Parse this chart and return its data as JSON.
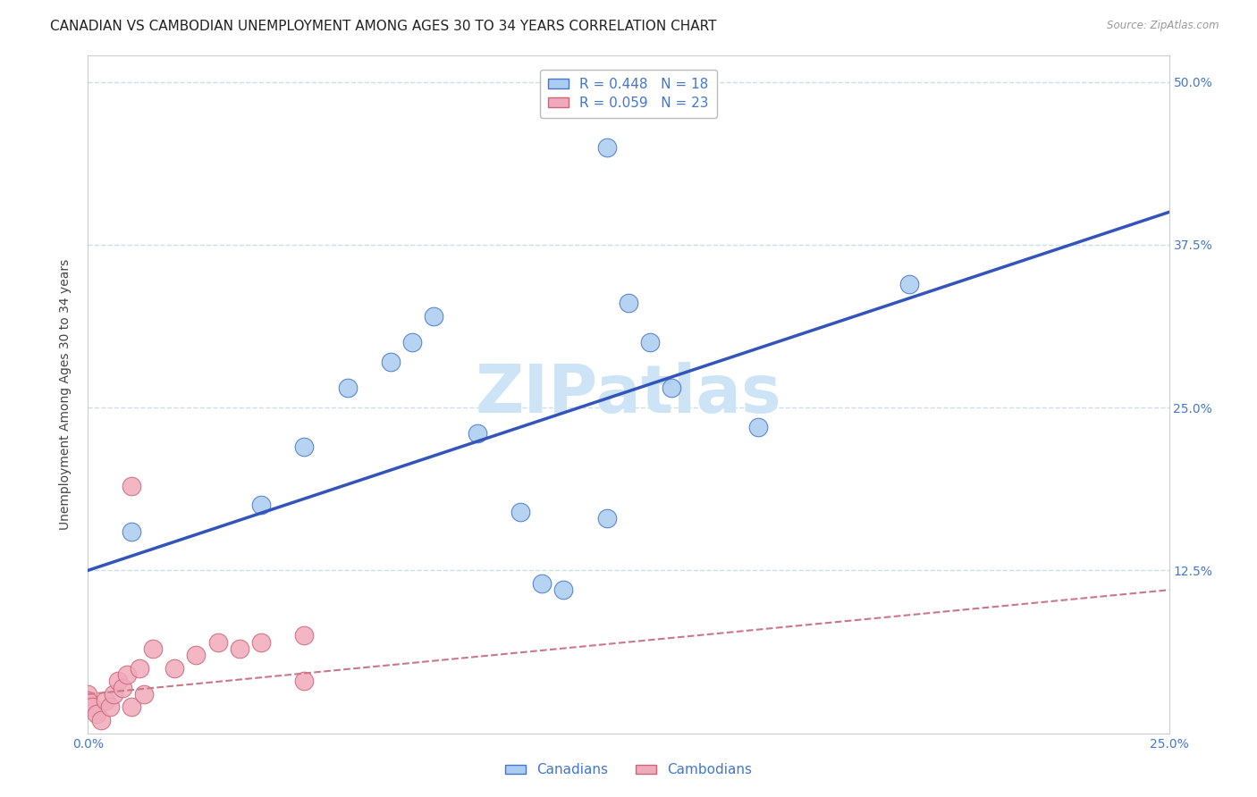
{
  "title": "CANADIAN VS CAMBODIAN UNEMPLOYMENT AMONG AGES 30 TO 34 YEARS CORRELATION CHART",
  "source": "Source: ZipAtlas.com",
  "ylabel": "Unemployment Among Ages 30 to 34 years",
  "xlim": [
    0.0,
    0.25
  ],
  "ylim": [
    0.0,
    0.52
  ],
  "canadians_x": [
    0.01,
    0.04,
    0.05,
    0.06,
    0.07,
    0.075,
    0.08,
    0.09,
    0.1,
    0.105,
    0.11,
    0.12,
    0.125,
    0.13,
    0.135,
    0.155,
    0.19,
    0.12
  ],
  "canadians_y": [
    0.155,
    0.175,
    0.22,
    0.265,
    0.285,
    0.3,
    0.32,
    0.23,
    0.17,
    0.115,
    0.11,
    0.45,
    0.33,
    0.3,
    0.265,
    0.235,
    0.345,
    0.165
  ],
  "cambodians_x": [
    0.0,
    0.0,
    0.001,
    0.002,
    0.003,
    0.004,
    0.005,
    0.006,
    0.007,
    0.008,
    0.009,
    0.01,
    0.012,
    0.013,
    0.015,
    0.02,
    0.025,
    0.03,
    0.035,
    0.04,
    0.05,
    0.05,
    0.01
  ],
  "cambodians_y": [
    0.03,
    0.025,
    0.02,
    0.015,
    0.01,
    0.025,
    0.02,
    0.03,
    0.04,
    0.035,
    0.045,
    0.02,
    0.05,
    0.03,
    0.065,
    0.05,
    0.06,
    0.07,
    0.065,
    0.07,
    0.075,
    0.04,
    0.19
  ],
  "canadian_R": 0.448,
  "canadian_N": 18,
  "cambodian_R": 0.059,
  "cambodian_N": 23,
  "canadian_color": "#aaccf0",
  "cambodian_color": "#f0aabb",
  "canadian_line_color": "#4477cc",
  "cambodian_line_color": "#cc6677",
  "canadian_reg_line_color": "#3355bb",
  "cambodian_reg_line_color": "#cc7788",
  "background_color": "#ffffff",
  "watermark_text": "ZIPatlas",
  "watermark_color": "#cce4f5",
  "title_fontsize": 11,
  "axis_label_fontsize": 10,
  "tick_fontsize": 10,
  "legend_fontsize": 11,
  "grid_color": "#ccddee",
  "yticks": [
    0.125,
    0.25,
    0.375,
    0.5
  ],
  "ytick_labels": [
    "12.5%",
    "25.0%",
    "37.5%",
    "50.0%"
  ],
  "xticks": [
    0.0,
    0.25
  ],
  "xtick_labels": [
    "0.0%",
    "25.0%"
  ]
}
